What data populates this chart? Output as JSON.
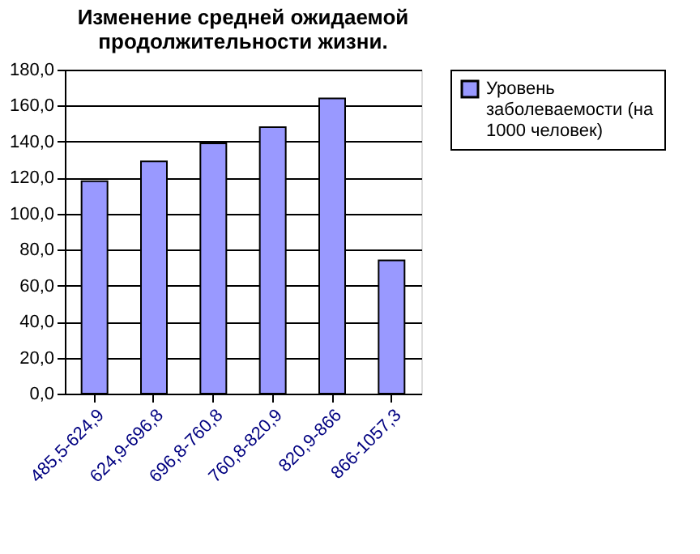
{
  "chart_data": {
    "type": "bar",
    "title": "Изменение средней ожидаемой продолжительности жизни.",
    "categories": [
      "485,5-624,9",
      "624,9-696,8",
      "696,8-760,8",
      "760,8-820,9",
      "820,9-866",
      "866-1057,3"
    ],
    "series": [
      {
        "name": "Уровень заболеваемости (на 1000 человек)",
        "color": "#9999ff",
        "values": [
          118,
          129,
          139,
          148,
          164,
          74
        ]
      }
    ],
    "ylim": [
      0,
      180
    ],
    "yticks": [
      {
        "value": 0,
        "label": "0,0"
      },
      {
        "value": 20,
        "label": "20,0"
      },
      {
        "value": 40,
        "label": "40,0"
      },
      {
        "value": 60,
        "label": "60,0"
      },
      {
        "value": 80,
        "label": "80,0"
      },
      {
        "value": 100,
        "label": "100,0"
      },
      {
        "value": 120,
        "label": "120,0"
      },
      {
        "value": 140,
        "label": "140,0"
      },
      {
        "value": 160,
        "label": "160,0"
      },
      {
        "value": 180,
        "label": "180,0"
      }
    ],
    "grid": "y",
    "legend": "right"
  }
}
